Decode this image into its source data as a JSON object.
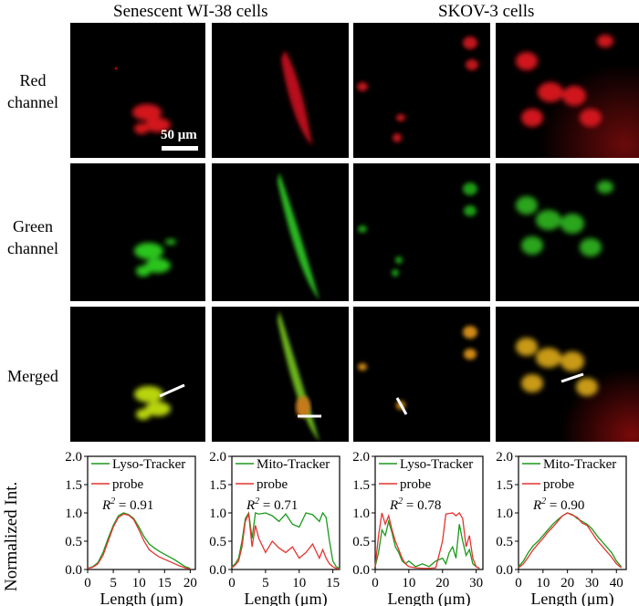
{
  "columns": [
    {
      "title": "Senescent WI-38 cells"
    },
    {
      "title": "SKOV-3 cells"
    }
  ],
  "rows": [
    {
      "label_line1": "Red",
      "label_line2": "channel"
    },
    {
      "label_line1": "Green",
      "label_line2": "channel"
    },
    {
      "label_line1": "Merged",
      "label_line2": ""
    }
  ],
  "scalebar": {
    "label": "50 μm"
  },
  "colors": {
    "green": "#1a9a1a",
    "red": "#e3342f",
    "axis": "#000000"
  },
  "y_axis_shared_label": "Normalized Int.",
  "chart_data": [
    {
      "type": "line",
      "xlabel": "Length (μm)",
      "ylim": [
        0,
        2.0
      ],
      "yticks": [
        "0.0",
        "0.5",
        "1.0",
        "1.5",
        "2.0"
      ],
      "xlim": [
        0,
        21
      ],
      "xticks": [
        "0",
        "5",
        "10",
        "15",
        "20"
      ],
      "xtick_values": [
        0,
        5,
        10,
        15,
        20
      ],
      "legend": [
        {
          "name": "Lyso-Tracker",
          "color": "green"
        },
        {
          "name": "probe",
          "color": "red"
        }
      ],
      "r2_label": "R² = 0.91",
      "r2_prefix": "R",
      "r2_value": " = 0.91",
      "series": [
        {
          "name": "Lyso-Tracker",
          "color": "green",
          "x": [
            0,
            1,
            2,
            3,
            4,
            5,
            6,
            7,
            8,
            9,
            10,
            11,
            12,
            13,
            14,
            15,
            16,
            17,
            18,
            19,
            20
          ],
          "y": [
            0.02,
            0.05,
            0.12,
            0.3,
            0.55,
            0.78,
            0.95,
            1.0,
            0.97,
            0.9,
            0.75,
            0.58,
            0.45,
            0.38,
            0.32,
            0.27,
            0.22,
            0.17,
            0.11,
            0.05,
            0.02
          ]
        },
        {
          "name": "probe",
          "color": "red",
          "x": [
            0,
            1,
            2,
            3,
            4,
            5,
            6,
            7,
            8,
            9,
            10,
            11,
            12,
            13,
            14,
            15,
            16,
            17,
            18,
            19,
            20
          ],
          "y": [
            0.02,
            0.04,
            0.1,
            0.25,
            0.5,
            0.75,
            0.92,
            0.98,
            0.96,
            0.88,
            0.7,
            0.5,
            0.35,
            0.28,
            0.22,
            0.18,
            0.14,
            0.1,
            0.06,
            0.03,
            0.01
          ]
        }
      ]
    },
    {
      "type": "line",
      "xlabel": "Length (μm)",
      "ylim": [
        0,
        2.0
      ],
      "yticks": [
        "0.0",
        "0.5",
        "1.0",
        "1.5",
        "2.0"
      ],
      "xlim": [
        0,
        16
      ],
      "xticks": [
        "0",
        "5",
        "10",
        "15"
      ],
      "xtick_values": [
        0,
        5,
        10,
        15
      ],
      "legend": [
        {
          "name": "Mito-Tracker",
          "color": "green"
        },
        {
          "name": "probe",
          "color": "red"
        }
      ],
      "r2_label": "R² = 0.71",
      "r2_prefix": "R",
      "r2_value": " = 0.71",
      "series": [
        {
          "name": "Mito-Tracker",
          "color": "green",
          "x": [
            0,
            0.5,
            1,
            1.5,
            2,
            2.5,
            3,
            3.5,
            4,
            5,
            6,
            7,
            8,
            9,
            10,
            11,
            12,
            13,
            13.5,
            14,
            14.5,
            15,
            15.5,
            16
          ],
          "y": [
            0.05,
            0.1,
            0.2,
            0.5,
            0.9,
            1.0,
            0.55,
            1.0,
            0.98,
            1.0,
            0.95,
            0.85,
            0.98,
            0.8,
            0.75,
            1.0,
            0.97,
            0.85,
            1.0,
            0.92,
            0.5,
            0.15,
            0.05,
            0.02
          ]
        },
        {
          "name": "probe",
          "color": "red",
          "x": [
            0,
            0.5,
            1,
            1.5,
            2,
            2.5,
            3,
            3.5,
            4,
            5,
            6,
            7,
            8,
            9,
            10,
            11,
            12,
            13,
            13.5,
            14,
            14.5,
            15,
            15.5,
            16
          ],
          "y": [
            0.03,
            0.08,
            0.15,
            0.4,
            0.85,
            0.98,
            0.4,
            0.78,
            0.55,
            0.3,
            0.5,
            0.38,
            0.3,
            0.4,
            0.2,
            0.3,
            0.45,
            0.2,
            0.35,
            0.2,
            0.1,
            0.05,
            0.02,
            0.01
          ]
        }
      ]
    },
    {
      "type": "line",
      "xlabel": "Length (μm)",
      "ylim": [
        0,
        2.0
      ],
      "yticks": [
        "0.0",
        "0.5",
        "1.0",
        "1.5",
        "2.0"
      ],
      "xlim": [
        0,
        32
      ],
      "xticks": [
        "0",
        "10",
        "20",
        "30"
      ],
      "xtick_values": [
        0,
        10,
        20,
        30
      ],
      "legend": [
        {
          "name": "Lyso-Tracker",
          "color": "green"
        },
        {
          "name": "probe",
          "color": "red"
        }
      ],
      "r2_label": "R² = 0.78",
      "r2_prefix": "R",
      "r2_value": " = 0.78",
      "series": [
        {
          "name": "Lyso-Tracker",
          "color": "green",
          "x": [
            0,
            1,
            2,
            3,
            4,
            5,
            6,
            7,
            8,
            9,
            10,
            12,
            14,
            16,
            18,
            20,
            21,
            22,
            23,
            24,
            25,
            26,
            27,
            28,
            29,
            30,
            31
          ],
          "y": [
            0.05,
            0.3,
            0.7,
            0.6,
            0.85,
            0.65,
            0.4,
            0.3,
            0.15,
            0.1,
            0.15,
            0.05,
            0.1,
            0.05,
            0.15,
            0.2,
            0.1,
            0.3,
            0.4,
            0.2,
            0.8,
            0.5,
            0.25,
            0.35,
            0.1,
            0.05,
            0.02
          ]
        },
        {
          "name": "probe",
          "color": "red",
          "x": [
            0,
            1,
            2,
            3,
            4,
            5,
            6,
            7,
            8,
            9,
            10,
            12,
            14,
            16,
            18,
            20,
            21,
            22,
            23,
            24,
            25,
            26,
            27,
            28,
            29,
            30,
            31
          ],
          "y": [
            0.05,
            0.6,
            1.0,
            0.8,
            0.95,
            0.7,
            0.5,
            0.35,
            0.2,
            0.1,
            0.05,
            0.03,
            0.02,
            0.02,
            0.03,
            0.5,
            0.98,
            0.99,
            1.0,
            0.95,
            1.0,
            0.9,
            0.4,
            0.6,
            0.2,
            0.05,
            0.02
          ]
        }
      ]
    },
    {
      "type": "line",
      "xlabel": "Length (μm)",
      "ylim": [
        0,
        2.0
      ],
      "yticks": [
        "0.0",
        "0.5",
        "1.0",
        "1.5",
        "2.0"
      ],
      "xlim": [
        0,
        44
      ],
      "xticks": [
        "0",
        "10",
        "20",
        "30",
        "40"
      ],
      "xtick_values": [
        0,
        10,
        20,
        30,
        40
      ],
      "legend": [
        {
          "name": "Mito-Tracker",
          "color": "green"
        },
        {
          "name": "probe",
          "color": "red"
        }
      ],
      "r2_label": "R² = 0.90",
      "r2_prefix": "R",
      "r2_value": " = 0.90",
      "series": [
        {
          "name": "Mito-Tracker",
          "color": "green",
          "x": [
            0,
            2,
            4,
            6,
            8,
            10,
            12,
            14,
            16,
            18,
            20,
            22,
            24,
            26,
            28,
            30,
            32,
            34,
            36,
            38,
            40,
            42
          ],
          "y": [
            0.05,
            0.15,
            0.3,
            0.42,
            0.5,
            0.6,
            0.7,
            0.8,
            0.88,
            0.95,
            1.0,
            0.97,
            0.9,
            0.85,
            0.8,
            0.72,
            0.6,
            0.5,
            0.4,
            0.3,
            0.15,
            0.05
          ]
        },
        {
          "name": "probe",
          "color": "red",
          "x": [
            0,
            2,
            4,
            6,
            8,
            10,
            12,
            14,
            16,
            18,
            20,
            22,
            24,
            26,
            28,
            30,
            32,
            34,
            36,
            38,
            40,
            42
          ],
          "y": [
            0.03,
            0.1,
            0.22,
            0.35,
            0.45,
            0.55,
            0.66,
            0.75,
            0.85,
            0.95,
            1.0,
            0.96,
            0.92,
            0.82,
            0.78,
            0.65,
            0.52,
            0.42,
            0.32,
            0.22,
            0.1,
            0.03
          ]
        }
      ]
    }
  ]
}
